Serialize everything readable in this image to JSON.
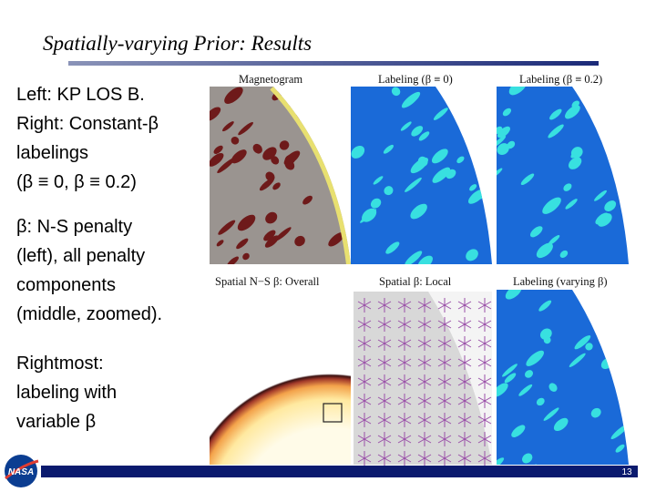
{
  "title": "Spatially-varying Prior: Results",
  "bullets": [
    [
      "Left: KP LOS B.",
      "Right: Constant-β",
      "labelings",
      "(β ≡ 0, β ≡ 0.2)"
    ],
    [
      "β: N-S penalty",
      "(left), all penalty",
      "components",
      "(middle, zoomed)."
    ],
    [
      "Rightmost:",
      "labeling with",
      "variable β"
    ]
  ],
  "panels": [
    "Magnetogram",
    "Labeling (β ≡ 0)",
    "Labeling (β ≡ 0.2)",
    "Spatial N−S β: Overall",
    "Spatial β: Local",
    "Labeling (varying β)"
  ],
  "logo": "NASA",
  "page_number": "13"
}
